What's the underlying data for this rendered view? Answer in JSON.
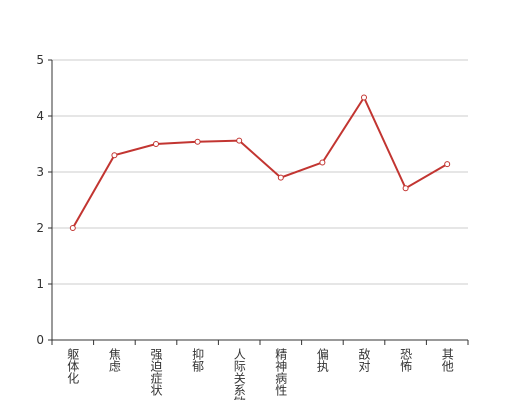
{
  "chart_data": {
    "type": "line",
    "categories": [
      "躯体化",
      "焦虑",
      "强迫症状",
      "抑郁",
      "人际关系敏感",
      "精神病性",
      "偏执",
      "敌对",
      "恐怖",
      "其他"
    ],
    "values": [
      2.0,
      3.3,
      3.5,
      3.54,
      3.56,
      2.9,
      3.17,
      4.33,
      2.71,
      3.14
    ],
    "color": "#c23531",
    "ylim": [
      0,
      5
    ],
    "yticks": [
      0,
      1,
      2,
      3,
      4,
      5
    ],
    "grid": true
  }
}
